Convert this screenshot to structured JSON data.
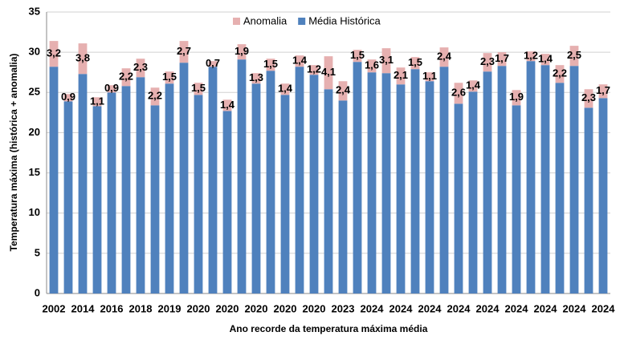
{
  "chart_data": {
    "type": "stacked-bar",
    "xlabel": "Ano recorde da temperatura máxima média",
    "ylabel": "Temperatura máxima (histórica + anomalia)",
    "categories": [
      "2002",
      null,
      "2014",
      null,
      "2016",
      null,
      "2018",
      null,
      "2019",
      null,
      "2020",
      null,
      "2020",
      null,
      "2020",
      null,
      "2020",
      null,
      "2020",
      null,
      "2023",
      null,
      "2024",
      null,
      "2024",
      null,
      "2024",
      null,
      "2024",
      null,
      "2024",
      null,
      "2024",
      null,
      "2024",
      null,
      "2024",
      null,
      "2024"
    ],
    "series": [
      {
        "name": "Média Histórica",
        "color": "#4f81bd",
        "values": [
          28.2,
          23.9,
          27.3,
          23.3,
          25.0,
          25.8,
          26.9,
          23.4,
          26.1,
          28.7,
          24.7,
          28.2,
          22.7,
          29.1,
          26.1,
          27.7,
          24.7,
          28.2,
          27.2,
          25.4,
          24.0,
          28.8,
          27.5,
          27.4,
          26.0,
          27.9,
          26.4,
          28.2,
          23.6,
          25.1,
          27.6,
          28.3,
          23.4,
          28.9,
          28.4,
          26.2,
          28.3,
          23.1,
          24.3
        ]
      },
      {
        "name": "Anomalia",
        "color": "#e6b0b0",
        "values": [
          3.2,
          0.9,
          3.8,
          1.1,
          0.9,
          2.2,
          2.3,
          2.2,
          1.5,
          2.7,
          1.5,
          0.7,
          1.4,
          1.9,
          1.3,
          1.5,
          1.4,
          1.4,
          1.2,
          4.1,
          2.4,
          1.5,
          1.6,
          3.1,
          2.1,
          1.5,
          1.1,
          2.4,
          2.6,
          1.4,
          2.3,
          1.7,
          1.9,
          1.2,
          1.4,
          2.2,
          2.5,
          2.3,
          1.7
        ],
        "value_labels": [
          "3,2",
          "0,9",
          "3,8",
          "1,1",
          "0,9",
          "2,2",
          "2,3",
          "2,2",
          "1,5",
          "2,7",
          "1,5",
          "0,7",
          "1,4",
          "1,9",
          "1,3",
          "1,5",
          "1,4",
          "1,4",
          "1,2",
          "4,1",
          "2,4",
          "1,5",
          "1,6",
          "3,1",
          "2,1",
          "1,5",
          "1,1",
          "2,4",
          "2,6",
          "1,4",
          "2,3",
          "1,7",
          "1,9",
          "1,2",
          "1,4",
          "2,2",
          "2,5",
          "2,3",
          "1,7"
        ]
      }
    ],
    "ylim": [
      0,
      35
    ],
    "yticks": [
      0,
      5,
      10,
      15,
      20,
      25,
      30,
      35
    ],
    "grid": true,
    "legend": "top"
  }
}
